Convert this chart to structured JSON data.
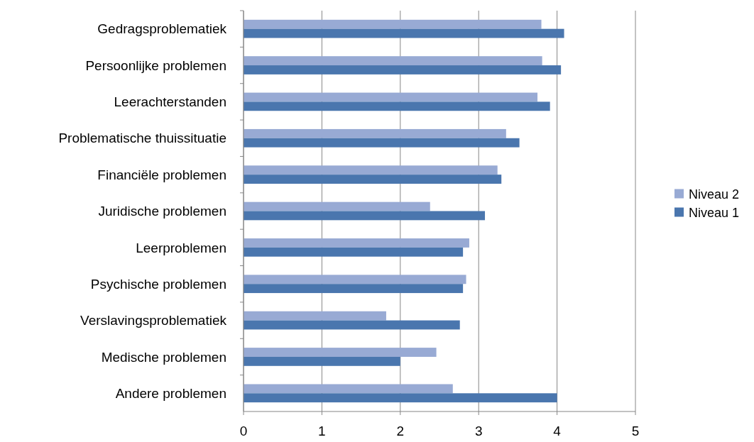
{
  "chart_data": {
    "type": "bar",
    "orientation": "horizontal",
    "categories": [
      "Gedragsproblematiek",
      "Persoonlijke problemen",
      "Leerachterstanden",
      "Problematische thuissituatie",
      "Financiële problemen",
      "Juridische problemen",
      "Leerproblemen",
      "Psychische problemen",
      "Verslavingsproblematiek",
      "Medische problemen",
      "Andere problemen"
    ],
    "series": [
      {
        "name": "Niveau 2",
        "color": "#98aad4",
        "values": [
          3.8,
          3.81,
          3.75,
          3.35,
          3.24,
          2.38,
          2.88,
          2.84,
          1.82,
          2.46,
          2.67
        ]
      },
      {
        "name": "Niveau 1",
        "color": "#4a76ae",
        "values": [
          4.09,
          4.05,
          3.91,
          3.52,
          3.29,
          3.08,
          2.8,
          2.8,
          2.76,
          2.0,
          4.0
        ]
      }
    ],
    "xlim": [
      0,
      5
    ],
    "xticks": [
      0,
      1,
      2,
      3,
      4,
      5
    ],
    "grid": "x",
    "legend": "right"
  }
}
